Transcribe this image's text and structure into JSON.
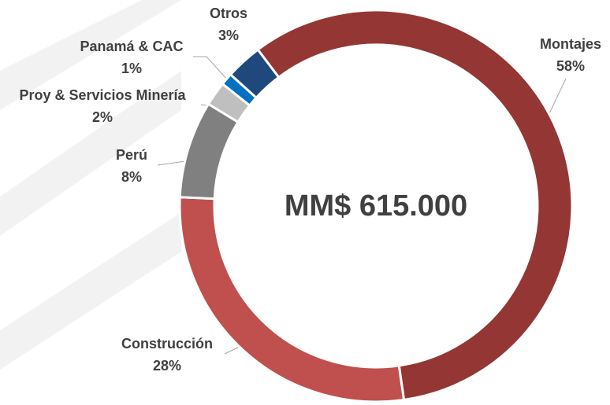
{
  "chart_data": {
    "type": "donut",
    "center_label": "MM$ 615.000",
    "categories": [
      "Montajes",
      "Construcción",
      "Perú",
      "Proy & Servicios Minería",
      "Panamá & CAC",
      "Otros"
    ],
    "values": [
      58,
      28,
      8,
      2,
      1,
      3
    ],
    "value_labels": [
      "58%",
      "28%",
      "8%",
      "2%",
      "1%",
      "3%"
    ],
    "colors": [
      "#943634",
      "#c0504d",
      "#808080",
      "#bfbfbf",
      "#0070c0",
      "#1f497d"
    ]
  }
}
